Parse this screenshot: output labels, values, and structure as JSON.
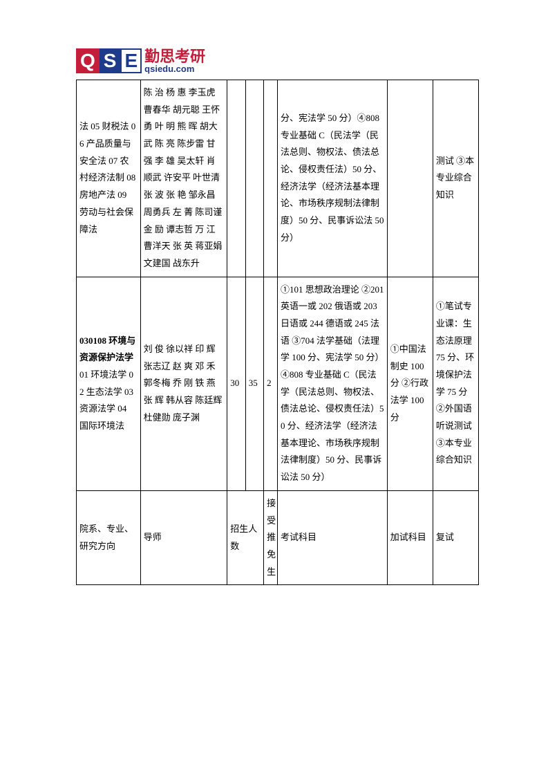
{
  "logo": {
    "q": "Q",
    "s": "S",
    "e": "E",
    "cn": "勤思考研",
    "url": "qsiedu.com"
  },
  "rows": [
    {
      "major": "法 05 财税法 06 产品质量与安全法 07 农村经济法制 08 房地产法 09 劳动与社会保障法",
      "tutor": "陈 治  杨 惠  李玉虎  曹春华  胡元聪  王怀勇  叶 明  熊  晖  胡大武  陈  亮  陈步雷  甘  强  李 雄  吴太轩  肖顺武  许安平  叶世清  张  波  张 艳  邹永昌  周勇兵  左 菁  陈司谨  金 励  谭志哲  万 江  曹洋天  张 英  蒋亚娟  文建国  战东升",
      "num1": "",
      "num2": "",
      "num3": "",
      "exam": "分、宪法学 50 分）④808 专业基础 C（民法学（民法总则、物权法、债法总论、侵权责任法）50 分、经济法学（经济法基本理论、市场秩序规制法律制度）50 分、民事诉讼法 50 分）",
      "add": "",
      "retest": "测试 ③本专业综合知识"
    },
    {
      "major_bold": "030108 环境与资源保护法学",
      "major_rest": " 01 环境法学 02 生态法学 03 资源法学 04 国际环境法",
      "tutor": "刘  俊  徐以祥  印  辉  张志辽  赵 爽  邓 禾 郭冬梅  乔  刚  铁 燕  张  辉  韩从容  陈廷辉  杜健勋  庞子渊",
      "num1": "30",
      "num2": "35",
      "num3": "2",
      "exam": "①101 思想政治理论 ②201 英语一或 202 俄语或 203 日语或 244 德语或 245 法语 ③704 法学基础（法理学 100 分、宪法学 50 分）④808 专业基础 C（民法学（民法总则、物权法、债法总论、侵权责任法）50 分、经济法学（经济法基本理论、市场秩序规制法律制度）50 分、民事诉讼法 50 分）",
      "add": "①中国法制史 100 分 ②行政法学 100 分",
      "retest": "①笔试专业课：生态法原理 75 分、环境保护法学 75 分 ②外国语听说测试 ③本专业综合知识"
    }
  ],
  "header": {
    "major": "院系、专业、研究方向",
    "tutor": "导师",
    "num1": "招生人数",
    "num2": "接受推免生",
    "exam": "考试科目",
    "add": "加试科目",
    "retest": "复试"
  }
}
